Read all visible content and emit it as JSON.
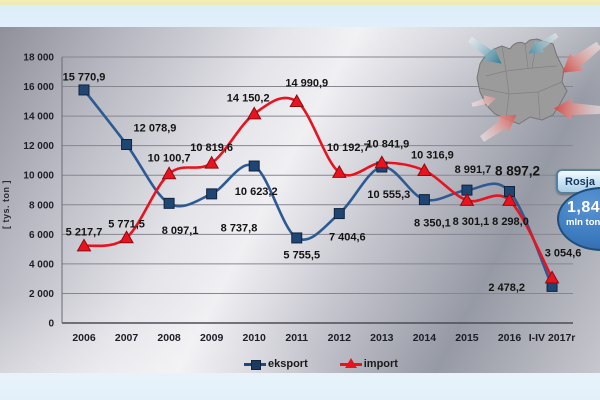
{
  "chart_data": {
    "type": "line",
    "title": "",
    "xlabel": "",
    "ylabel": "[ tys. ton ]",
    "ylim": [
      0,
      18000
    ],
    "y_tick_step": 2000,
    "y_ticks": [
      "18 000",
      "16 000",
      "14 000",
      "12 000",
      "10 000",
      "8 000",
      "6 000",
      "4 000",
      "2 000",
      "0"
    ],
    "grid": true,
    "legend_position": "bottom",
    "label_color": "#141414",
    "categories": [
      "2006",
      "2007",
      "2008",
      "2009",
      "2010",
      "2011",
      "2012",
      "2013",
      "2014",
      "2015",
      "2016",
      "I-IV 2017r"
    ],
    "series": [
      {
        "name": "eksport",
        "line_color": "#2d5a92",
        "marker": "square",
        "marker_fill": "#1f4572",
        "marker_edge": "#10243d",
        "values": [
          15770.9,
          12078.9,
          8097.1,
          8737.8,
          10623.2,
          5755.5,
          7404.6,
          10555.3,
          8350.1,
          8991.7,
          8897.2,
          2478.2
        ],
        "labels": [
          "15 770,9",
          "12 078,9",
          "8 097,1",
          "8 737,8",
          "10 623,2",
          "5 755,5",
          "7 404,6",
          "10 555,3",
          "8 350,1",
          "8 991,7",
          "8 897,2",
          "2 478,2"
        ],
        "label_offsets": [
          [
            0,
            -13
          ],
          [
            25,
            -17
          ],
          [
            11,
            27
          ],
          [
            27,
            34
          ],
          [
            2,
            25
          ],
          [
            5,
            17
          ],
          [
            8,
            23
          ],
          [
            7,
            27
          ],
          [
            8,
            23
          ],
          [
            6,
            -21
          ],
          [
            8,
            -20
          ],
          [
            -29,
            1
          ]
        ],
        "emphasized_label_index": 10,
        "emphasized_label_size": 13.5
      },
      {
        "name": "import",
        "line_color": "#e8131f",
        "marker": "triangle",
        "marker_fill": "#e8131f",
        "marker_edge": "#8e0b12",
        "values": [
          5217.7,
          5771.5,
          10100.7,
          10819.6,
          14150.2,
          14990.9,
          10192.7,
          10841.9,
          10316.9,
          8301.1,
          8298.0,
          3054.6
        ],
        "labels": [
          "5 217,7",
          "5 771,5",
          "10 100,7",
          "10 819,6",
          "14 150,2",
          "14 990,9",
          "10 192,7",
          "10 841,9",
          "10 316,9",
          "8 301,1",
          "8 298,0",
          "3 054,6"
        ],
        "label_offsets": [
          [
            0,
            -14
          ],
          [
            0,
            -14
          ],
          [
            0,
            -16
          ],
          [
            0,
            -16
          ],
          [
            -6,
            -16
          ],
          [
            10,
            -19
          ],
          [
            9,
            -25
          ],
          [
            6,
            -19
          ],
          [
            8,
            -16
          ],
          [
            4,
            21
          ],
          [
            1,
            21
          ],
          [
            11,
            -25
          ]
        ]
      }
    ]
  },
  "callout": {
    "country_label": "Rosja",
    "value": "1,84",
    "unit": "mln ton"
  },
  "icons": {
    "map": "poland-map",
    "import_arrows": "import-arrow-icon",
    "export_arrows": "export-arrow-icon"
  },
  "colors": {
    "eksport": "#2d5a92",
    "import": "#e8131f",
    "callout_circle": "#3f7ec2",
    "panel_gray": "#b6b7c0",
    "top_strip_yellow": "#f3efb4"
  }
}
